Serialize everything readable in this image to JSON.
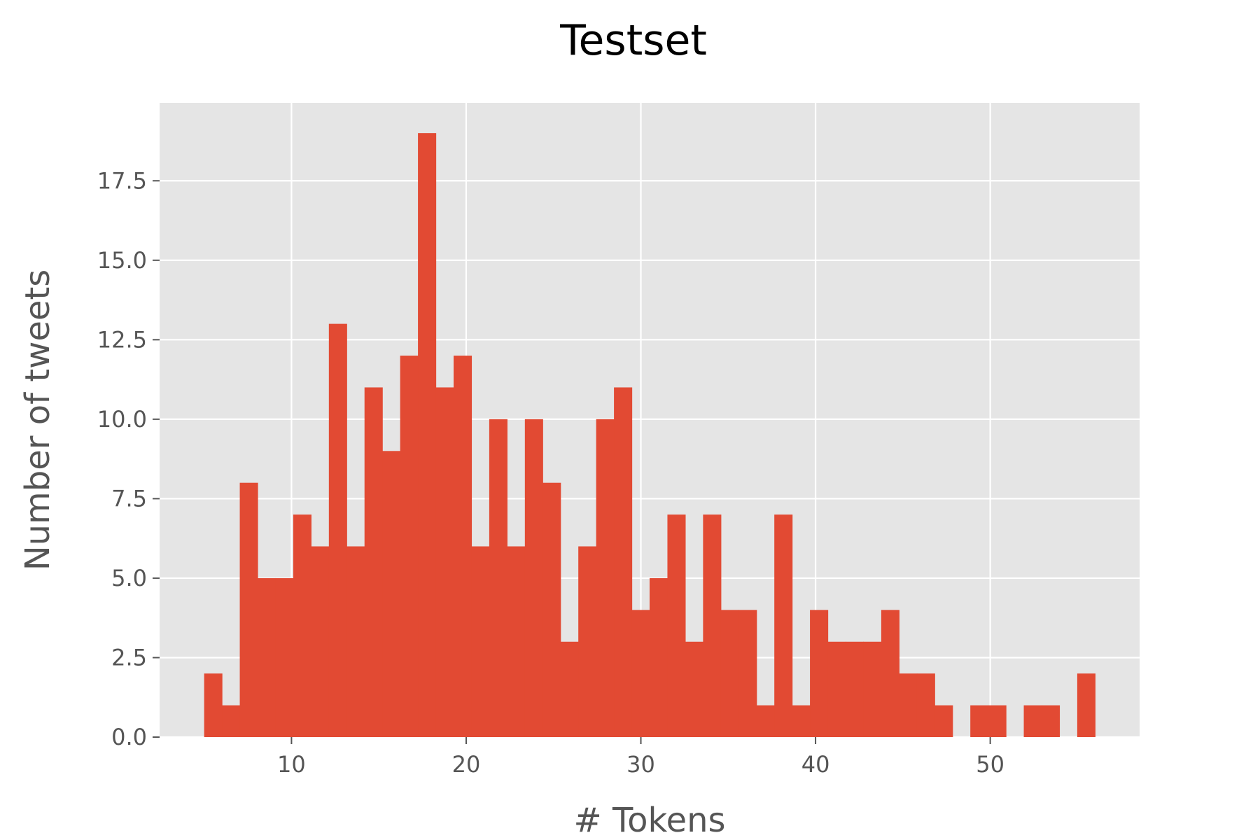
{
  "chart_data": {
    "type": "bar",
    "title": "Testset",
    "xlabel": "# Tokens",
    "ylabel": "Number of tweets",
    "bin_start": 5,
    "bin_width": 1.02,
    "counts": [
      2,
      1,
      8,
      5,
      5,
      7,
      6,
      13,
      6,
      11,
      9,
      12,
      19,
      11,
      12,
      6,
      10,
      6,
      10,
      8,
      3,
      6,
      10,
      11,
      4,
      5,
      7,
      3,
      7,
      4,
      4,
      1,
      7,
      1,
      4,
      3,
      3,
      3,
      4,
      2,
      2,
      1,
      0,
      1,
      1,
      0,
      1,
      1,
      0,
      2
    ],
    "xlim": [
      2.45,
      58.55
    ],
    "ylim": [
      0,
      19.95
    ],
    "xticks": [
      10,
      20,
      30,
      40,
      50
    ],
    "xtick_labels": [
      "10",
      "20",
      "30",
      "40",
      "50"
    ],
    "yticks": [
      0,
      2.5,
      5,
      7.5,
      10,
      12.5,
      15,
      17.5
    ],
    "ytick_labels": [
      "0.0",
      "2.5",
      "5.0",
      "7.5",
      "10.0",
      "12.5",
      "15.0",
      "17.5"
    ],
    "grid": true,
    "colors": {
      "bar": "#E24A33",
      "plot_bg": "#E5E5E5",
      "grid": "#FFFFFF",
      "tick": "#555555"
    }
  }
}
